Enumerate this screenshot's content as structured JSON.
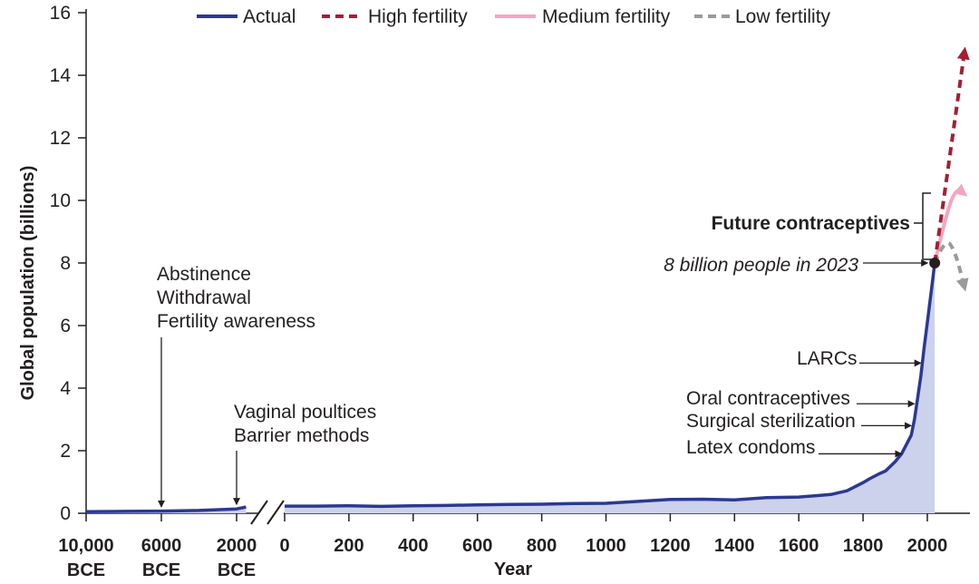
{
  "chart_data": {
    "type": "area",
    "ylabel": "Global population (billions)",
    "xlabel": "Year",
    "ylim": [
      0,
      16
    ],
    "y_ticks": [
      "0",
      "2",
      "4",
      "6",
      "8",
      "10",
      "12",
      "14",
      "16"
    ],
    "bce_ticks": [
      {
        "line1": "10,000",
        "line2": "BCE",
        "year": -10000
      },
      {
        "line1": "6000",
        "line2": "BCE",
        "year": -6000
      },
      {
        "line1": "2000",
        "line2": "BCE",
        "year": -2000
      }
    ],
    "ce_ticks": [
      "0",
      "200",
      "400",
      "600",
      "800",
      "1000",
      "1200",
      "1400",
      "1600",
      "1800",
      "2000"
    ],
    "legend": [
      {
        "label": "Actual",
        "color": "#2b3990",
        "style": "solid"
      },
      {
        "label": "High fertility",
        "color": "#a31f34",
        "style": "dashed"
      },
      {
        "label": "Medium fertility",
        "color": "#f4a6c0",
        "style": "solid"
      },
      {
        "label": "Low fertility",
        "color": "#9a9a9a",
        "style": "dashed"
      }
    ],
    "series": [
      {
        "name": "Actual",
        "segment_bce": {
          "x": [
            -10000,
            -8000,
            -6000,
            -4000,
            -2000,
            -1500
          ],
          "y": [
            0.05,
            0.06,
            0.07,
            0.09,
            0.14,
            0.2
          ]
        },
        "segment_ce": {
          "x": [
            0,
            100,
            200,
            300,
            400,
            500,
            600,
            700,
            800,
            900,
            1000,
            1100,
            1200,
            1300,
            1400,
            1500,
            1600,
            1650,
            1700,
            1750,
            1800,
            1820,
            1850,
            1870,
            1900,
            1920,
            1950,
            1960,
            1970,
            1980,
            1990,
            2000,
            2010,
            2023
          ],
          "y": [
            0.23,
            0.23,
            0.24,
            0.22,
            0.24,
            0.25,
            0.27,
            0.28,
            0.29,
            0.31,
            0.32,
            0.38,
            0.44,
            0.45,
            0.43,
            0.5,
            0.52,
            0.56,
            0.6,
            0.72,
            0.98,
            1.1,
            1.26,
            1.35,
            1.65,
            1.9,
            2.5,
            3.0,
            3.7,
            4.4,
            5.3,
            6.1,
            6.9,
            8.0
          ]
        }
      },
      {
        "name": "High fertility",
        "x": [
          2023,
          2100
        ],
        "y": [
          8.0,
          14.8
        ]
      },
      {
        "name": "Medium fertility",
        "x": [
          2023,
          2055,
          2080,
          2100
        ],
        "y": [
          8.0,
          9.7,
          10.4,
          10.2
        ]
      },
      {
        "name": "Low fertility",
        "x": [
          2023,
          2050,
          2075,
          2100
        ],
        "y": [
          8.0,
          8.8,
          8.4,
          7.2
        ]
      }
    ],
    "annotations": {
      "ancient": [
        "Abstinence",
        "Withdrawal",
        "Fertility awareness"
      ],
      "early": [
        "Vaginal poultices",
        "Barrier methods"
      ],
      "future": "Future contraceptives",
      "milestone": "8 billion people in 2023",
      "larcs": "LARCs",
      "oral": "Oral contraceptives",
      "surgical": "Surgical sterilization",
      "latex": "Latex condoms"
    }
  }
}
